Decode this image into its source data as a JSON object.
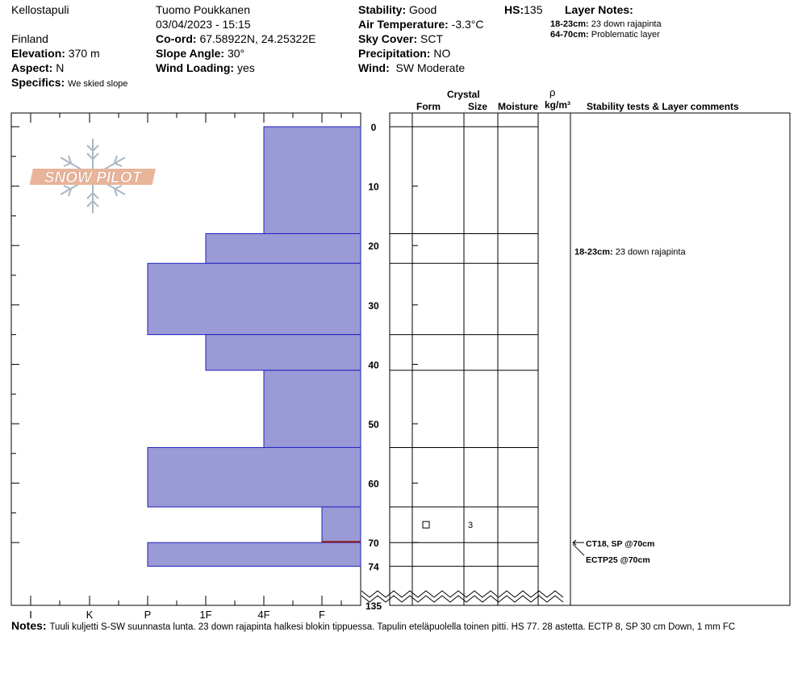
{
  "header": {
    "location": "Kellostapuli",
    "country": "Finland",
    "observer": "Tuomo Poukkanen",
    "datetime": "03/04/2023 - 15:15",
    "elevation": {
      "label": "Elevation:",
      "value": "370 m"
    },
    "aspect": {
      "label": "Aspect:",
      "value": "N"
    },
    "specifics": {
      "label": "Specifics:",
      "value": "We skied slope"
    },
    "coord": {
      "label": "Co-ord:",
      "value": "67.58922N, 24.25322E"
    },
    "slope_angle": {
      "label": "Slope Angle:",
      "value": "30°"
    },
    "wind_loading": {
      "label": "Wind Loading:",
      "value": "yes"
    },
    "stability": {
      "label": "Stability:",
      "value": "Good"
    },
    "air_temp": {
      "label": "Air Temperature:",
      "value": "-3.3°C"
    },
    "sky_cover": {
      "label": "Sky Cover:",
      "value": "SCT"
    },
    "precipitation": {
      "label": "Precipitation:",
      "value": "NO"
    },
    "wind": {
      "label": "Wind:",
      "value": "SW Moderate"
    },
    "hs": {
      "label": "HS:",
      "value": "135"
    },
    "layer_notes": {
      "title": "Layer Notes:",
      "items": [
        {
          "range": "18-23cm:",
          "text": "23 down rajapinta"
        },
        {
          "range": "64-70cm:",
          "text": "Problematic layer"
        }
      ]
    }
  },
  "logo": {
    "text": "SNOW PILOT"
  },
  "columns": {
    "crystal": "Crystal",
    "form": "Form",
    "size": "Size",
    "moisture": "Moisture",
    "rho": "ρ",
    "density_unit": "kg/m³",
    "comments": "Stability tests & Layer comments"
  },
  "hardness_scale": [
    "I",
    "K",
    "P",
    "1F",
    "4F",
    "F"
  ],
  "depth_ticks": [
    "0",
    "10",
    "20",
    "30",
    "40",
    "50",
    "60",
    "70",
    "74",
    "135"
  ],
  "chart_data": {
    "type": "bar",
    "description_axis": "depth from top (cm)",
    "hardness_categories": [
      "F",
      "4F",
      "1F",
      "P",
      "K",
      "I"
    ],
    "layers": [
      {
        "top": 0,
        "bottom": 18,
        "hardness": "4F"
      },
      {
        "top": 18,
        "bottom": 23,
        "hardness": "1F"
      },
      {
        "top": 23,
        "bottom": 35,
        "hardness": "P"
      },
      {
        "top": 35,
        "bottom": 41,
        "hardness": "1F"
      },
      {
        "top": 41,
        "bottom": 54,
        "hardness": "4F"
      },
      {
        "top": 54,
        "bottom": 64,
        "hardness": "P"
      },
      {
        "top": 64,
        "bottom": 70,
        "hardness": "F"
      },
      {
        "top": 70,
        "bottom": 74,
        "hardness": "P"
      }
    ],
    "grid_rows": [
      0,
      18,
      23,
      35,
      41,
      54,
      64,
      70,
      74
    ],
    "crystal_layer": {
      "top": 64,
      "bottom": 70,
      "form_symbol": "□",
      "size": "3"
    },
    "ylim": [
      0,
      74
    ],
    "total_depth": 135
  },
  "layer_comments": [
    {
      "range": "18-23cm:",
      "text": "23 down rajapinta"
    }
  ],
  "stability_tests": [
    {
      "text": "CT18, SP @70cm",
      "depth": 70
    },
    {
      "text": "ECTP25 @70cm",
      "depth": 70
    }
  ],
  "notes": {
    "label": "Notes:",
    "text": "Tuuli kuljetti S-SW suunnasta lunta. 23 down rajapinta halkesi blokin tippuessa. Tapulin eteläpuolella toinen pitti. HS 77. 28 astetta. ECTP 8, SP 30 cm Down, 1 mm FC"
  },
  "colors": {
    "bar_fill": "#9a9ad6",
    "bar_stroke": "#2020c0",
    "weak_line": "#8b1a1a",
    "logo_fill": "#e8b49a",
    "logo_ice": "#aab7c4"
  }
}
